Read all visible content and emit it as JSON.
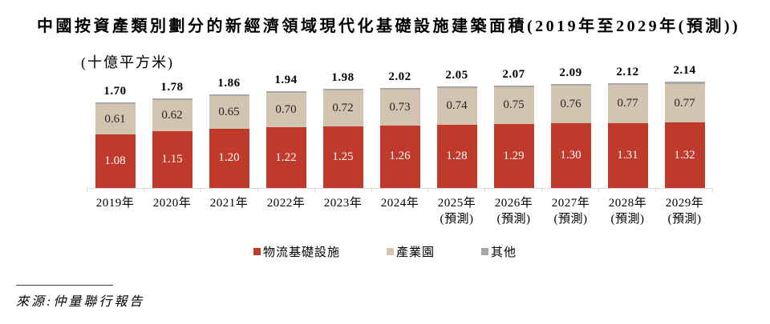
{
  "title": "中國按資產類別劃分的新經濟領域現代化基礎設施建築面積(2019年至2029年(預測))",
  "unit_label": "(十億平方米)",
  "source": "來源:仲量聯行報告",
  "colors": {
    "logistics": "#c03a2b",
    "industrial_park": "#d3c3b1",
    "other": "#a7a7a7",
    "axis_line": "#d9d9d9",
    "logistics_label_text": "#ffffff",
    "industrial_label_text": "#262626",
    "total_label_text": "#000000"
  },
  "chart_data": {
    "type": "bar",
    "stacked": true,
    "title": "中國按資產類別劃分的新經濟領域現代化基礎設施建築面積(2019年至2029年(預測))",
    "ylabel": "十億平方米",
    "grid": false,
    "legend_position": "bottom",
    "categories": [
      {
        "label": "2019年",
        "sublabel": ""
      },
      {
        "label": "2020年",
        "sublabel": ""
      },
      {
        "label": "2021年",
        "sublabel": ""
      },
      {
        "label": "2022年",
        "sublabel": ""
      },
      {
        "label": "2023年",
        "sublabel": ""
      },
      {
        "label": "2024年",
        "sublabel": ""
      },
      {
        "label": "2025年",
        "sublabel": "(預測)"
      },
      {
        "label": "2026年",
        "sublabel": "(預測)"
      },
      {
        "label": "2027年",
        "sublabel": "(預測)"
      },
      {
        "label": "2028年",
        "sublabel": "(預測)"
      },
      {
        "label": "2029年",
        "sublabel": "(預測)"
      }
    ],
    "series": [
      {
        "name": "物流基礎設施",
        "key": "logistics",
        "color": "#c03a2b",
        "label_color": "#ffffff",
        "show_labels": true,
        "values": [
          1.08,
          1.15,
          1.2,
          1.22,
          1.25,
          1.26,
          1.28,
          1.29,
          1.3,
          1.31,
          1.32
        ]
      },
      {
        "name": "產業園",
        "key": "industrial-park",
        "color": "#d3c3b1",
        "label_color": "#262626",
        "show_labels": true,
        "values": [
          0.61,
          0.62,
          0.65,
          0.7,
          0.72,
          0.73,
          0.74,
          0.75,
          0.76,
          0.77,
          0.77
        ]
      },
      {
        "name": "其他",
        "key": "other",
        "color": "#a7a7a7",
        "label_color": "#262626",
        "show_labels": false,
        "values": [
          0.01,
          0.01,
          0.01,
          0.02,
          0.01,
          0.03,
          0.03,
          0.03,
          0.03,
          0.04,
          0.05
        ]
      }
    ],
    "totals": [
      1.7,
      1.78,
      1.86,
      1.94,
      1.98,
      2.02,
      2.05,
      2.07,
      2.09,
      2.12,
      2.14
    ],
    "ylim": [
      0,
      2.3
    ]
  }
}
